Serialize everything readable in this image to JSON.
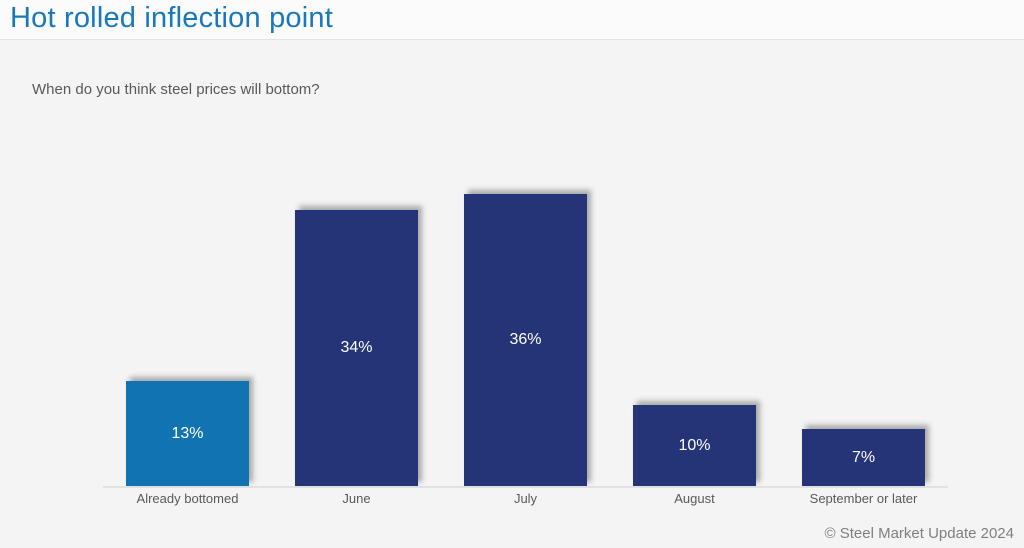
{
  "page": {
    "title": "Hot rolled inflection point",
    "subtitle": "When do you think steel prices will bottom?",
    "footer": "© Steel Market Update 2024"
  },
  "chart_data": {
    "type": "bar",
    "title": "Hot rolled inflection point",
    "subtitle_question": "When do you think steel prices will bottom?",
    "categories": [
      "Already bottomed",
      "June",
      "July",
      "August",
      "September or later"
    ],
    "values": [
      13,
      34,
      36,
      10,
      7
    ],
    "value_labels": [
      "13%",
      "34%",
      "36%",
      "10%",
      "7%"
    ],
    "bar_colors": [
      "#1273B2",
      "#253476",
      "#253476",
      "#253476",
      "#253476"
    ],
    "value_label_color": "#FFFFFF",
    "ylim": [
      0,
      36
    ],
    "grid": false,
    "legend": false,
    "xlabel": "",
    "ylabel": ""
  },
  "colors": {
    "title_blue": "#1878BE",
    "highlight_bar_blue": "#1273B2",
    "bar_navy": "#253476",
    "axis_line": "#E2E2E2",
    "text_gray": "#595959",
    "footer_gray": "#7F7F7F",
    "background": "#F4F4F4"
  }
}
